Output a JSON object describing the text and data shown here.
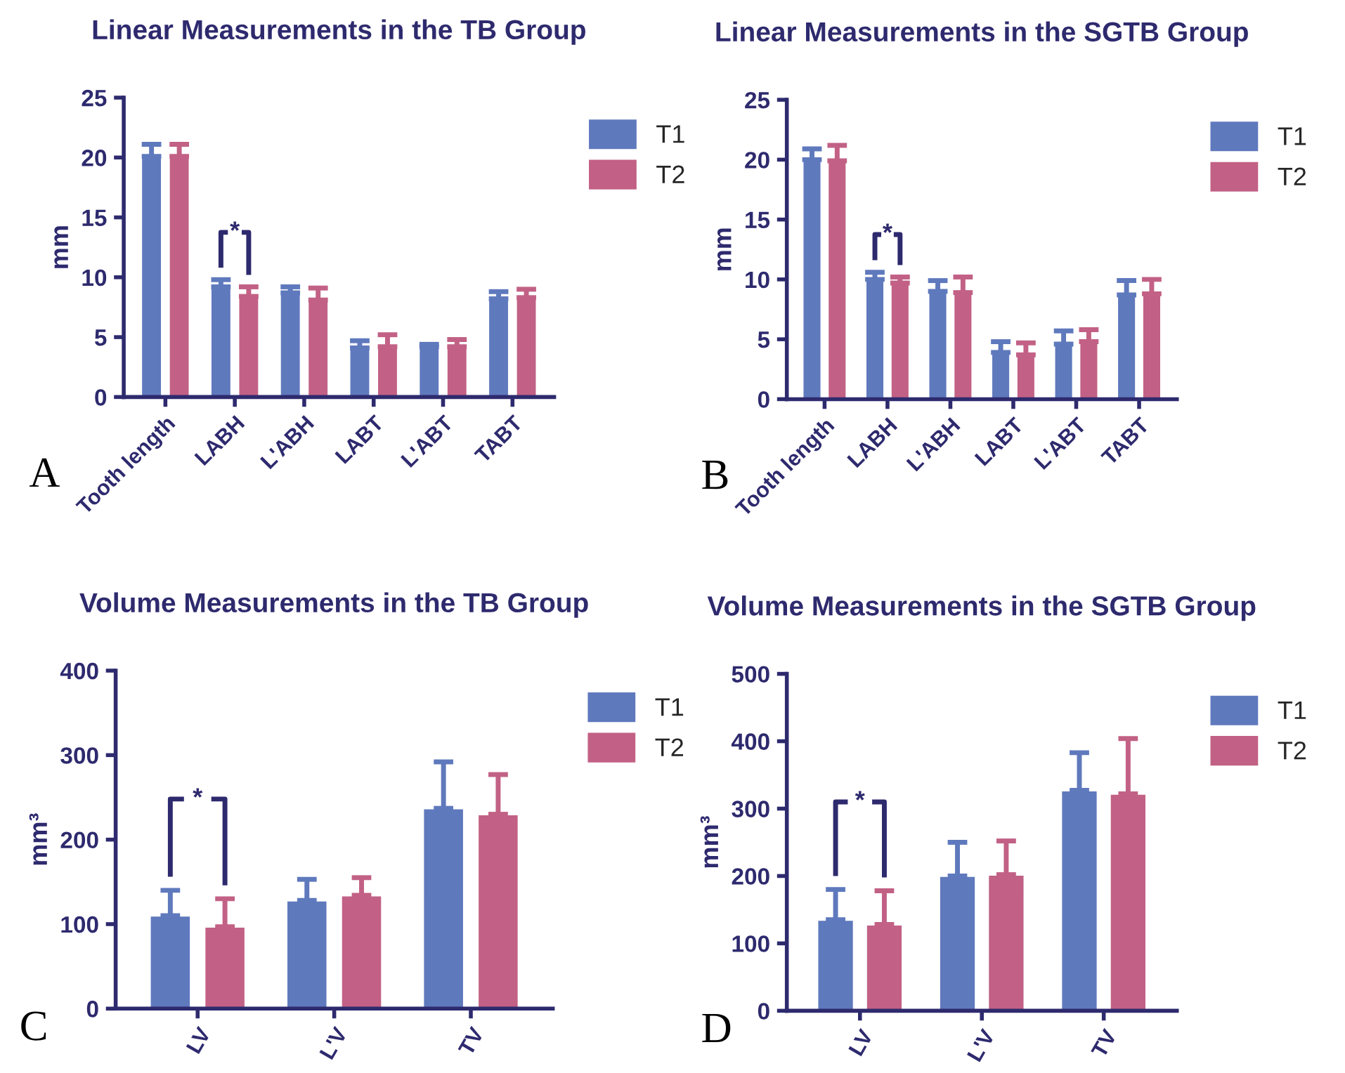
{
  "chart_data": [
    {
      "type": "bar",
      "title": "Linear Measurements in the TB Group",
      "ylabel": "mm",
      "categories": [
        "Tooth length",
        "LABH",
        "L'ABH",
        "LABT",
        "L'ABT",
        "TABT"
      ],
      "series": [
        {
          "name": "T1",
          "color": "#5f79bd",
          "values": [
            20.1,
            9.2,
            8.7,
            4.1,
            4.2,
            8.2
          ],
          "errors": [
            [
              20.1,
              21.1
            ],
            [
              9.2,
              9.8
            ],
            [
              8.7,
              9.2
            ],
            [
              4.1,
              4.7
            ],
            [
              4.2,
              4.4
            ],
            [
              8.2,
              8.8
            ]
          ]
        },
        {
          "name": "T2",
          "color": "#c26185",
          "values": [
            20.1,
            8.4,
            8.1,
            4.2,
            4.2,
            8.3
          ],
          "errors": [
            [
              20.1,
              21.1
            ],
            [
              8.4,
              9.2
            ],
            [
              8.1,
              9.1
            ],
            [
              4.2,
              5.2
            ],
            [
              4.2,
              4.8
            ],
            [
              8.3,
              9.0
            ]
          ]
        }
      ],
      "ylim": [
        0,
        25
      ],
      "yticks": [
        0,
        5,
        10,
        15,
        20,
        25
      ],
      "legend": "top right",
      "annotations": [
        "*",
        "A"
      ]
    },
    {
      "type": "bar",
      "title": "Linear Measurements in the SGTB Group",
      "ylabel": "mm",
      "categories": [
        "Tooth length",
        "LABH",
        "L'ABH",
        "LABT",
        "L'ABT",
        "TABT"
      ],
      "series": [
        {
          "name": "T1",
          "color": "#5f79bd",
          "values": [
            20.0,
            10.0,
            9.0,
            3.9,
            4.6,
            8.7
          ],
          "errors": [
            [
              20.0,
              20.9
            ],
            [
              10.0,
              10.6
            ],
            [
              9.0,
              9.9
            ],
            [
              3.9,
              4.8
            ],
            [
              4.6,
              5.7
            ],
            [
              8.7,
              9.9
            ]
          ]
        },
        {
          "name": "T2",
          "color": "#c26185",
          "values": [
            19.9,
            9.7,
            8.9,
            3.7,
            4.8,
            8.8
          ],
          "errors": [
            [
              19.9,
              21.2
            ],
            [
              9.7,
              10.2
            ],
            [
              8.9,
              10.2
            ],
            [
              3.7,
              4.7
            ],
            [
              4.8,
              5.8
            ],
            [
              8.8,
              10.0
            ]
          ]
        }
      ],
      "ylim": [
        0,
        25
      ],
      "yticks": [
        0,
        5,
        10,
        15,
        20,
        25
      ],
      "legend": "top right",
      "annotations": [
        "*",
        "B"
      ]
    },
    {
      "type": "bar",
      "title": "Volume Measurements in the TB Group",
      "ylabel": "mm³",
      "categories": [
        "LV",
        "L'V",
        "TV"
      ],
      "series": [
        {
          "name": "T1",
          "color": "#5f79bd",
          "values": [
            110,
            128,
            237
          ],
          "errors": [
            [
              110,
              140
            ],
            [
              128,
              153
            ],
            [
              237,
              292
            ]
          ]
        },
        {
          "name": "T2",
          "color": "#c26185",
          "values": [
            97,
            134,
            230
          ],
          "errors": [
            [
              97,
              130
            ],
            [
              134,
              155
            ],
            [
              230,
              277
            ]
          ]
        }
      ],
      "ylim": [
        0,
        400
      ],
      "yticks": [
        0,
        100,
        200,
        300,
        400
      ],
      "legend": "top right",
      "annotations": [
        "*",
        "C"
      ]
    },
    {
      "type": "bar",
      "title": "Volume Measurements in the SGTB Group",
      "ylabel": "mm³",
      "categories": [
        "LV",
        "L'V",
        "TV"
      ],
      "series": [
        {
          "name": "T1",
          "color": "#5f79bd",
          "values": [
            135,
            200,
            327
          ],
          "errors": [
            [
              135,
              180
            ],
            [
              200,
              250
            ],
            [
              327,
              383
            ]
          ]
        },
        {
          "name": "T2",
          "color": "#c26185",
          "values": [
            128,
            202,
            322
          ],
          "errors": [
            [
              128,
              178
            ],
            [
              202,
              252
            ],
            [
              322,
              404
            ]
          ]
        }
      ],
      "ylim": [
        0,
        500
      ],
      "yticks": [
        0,
        100,
        200,
        300,
        400,
        500
      ],
      "legend": "top right",
      "annotations": [
        "*",
        "D"
      ]
    }
  ]
}
